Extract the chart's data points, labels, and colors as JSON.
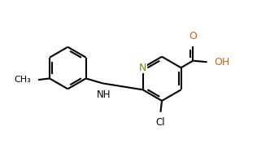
{
  "bg_color": "#ffffff",
  "bond_color": "#000000",
  "bond_lw": 1.5,
  "N_color": "#8B8000",
  "O_color": "#cc6600",
  "figsize": [
    3.32,
    1.77
  ],
  "dpi": 100,
  "xlim": [
    0,
    10
  ],
  "ylim": [
    0,
    5.3
  ]
}
